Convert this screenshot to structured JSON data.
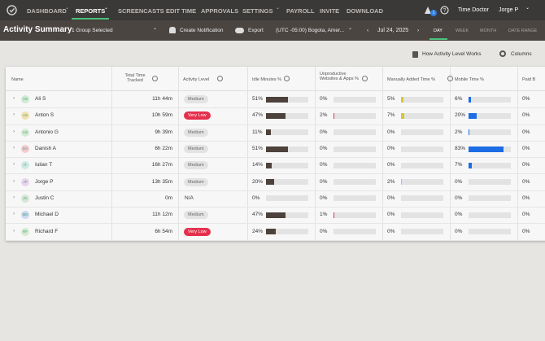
{
  "nav": {
    "items": [
      "DASHBOARD",
      "REPORTS",
      "SCREENCASTS",
      "EDIT TIME",
      "APPROVALS",
      "SETTINGS",
      "PAYROLL",
      "INVITE",
      "DOWNLOAD"
    ],
    "badge": "1",
    "brand": "Time Doctor",
    "user": "Jorge P"
  },
  "subbar": {
    "title": "Activity Summary",
    "group": "1 Group Selected",
    "notify": "Create Notification",
    "export": "Export",
    "timezone": "(UTC -05:00) Bogota, Amer...",
    "date": "Jul 24, 2025",
    "ranges": [
      "DAY",
      "WEEK",
      "MONTH",
      "DATE RANGE"
    ]
  },
  "toolbar": {
    "help": "How Activity Level Works",
    "columns": "Columns"
  },
  "table": {
    "headers": [
      "Name",
      "Total Time Tracked",
      "Activity Level",
      "Idle Minutes %",
      "Unproductive Websites & Apps %",
      "Manually Added Time %",
      "Mobile Time %",
      "Paid B"
    ],
    "rows": [
      {
        "initials": "AS",
        "name": "Ali S",
        "total": "11h 44m",
        "activity": "Medium",
        "idle": {
          "label": "51%",
          "value": 51
        },
        "unproductive": {
          "label": "0%",
          "value": 0
        },
        "manual": {
          "label": "5%",
          "value": 5
        },
        "mobile": {
          "label": "6%",
          "value": 6
        },
        "paid": "0%"
      },
      {
        "initials": "AS",
        "name": "Anton S",
        "total": "10h 59m",
        "activity": "Very Low",
        "idle": {
          "label": "47%",
          "value": 47
        },
        "unproductive": {
          "label": "2%",
          "value": 2
        },
        "manual": {
          "label": "7%",
          "value": 7
        },
        "mobile": {
          "label": "20%",
          "value": 20
        },
        "paid": "0%"
      },
      {
        "initials": "AG",
        "name": "Antonio G",
        "total": "9h 39m",
        "activity": "Medium",
        "idle": {
          "label": "11%",
          "value": 11
        },
        "unproductive": {
          "label": "0%",
          "value": 0
        },
        "manual": {
          "label": "0%",
          "value": 0
        },
        "mobile": {
          "label": "2%",
          "value": 2
        },
        "paid": "0%"
      },
      {
        "initials": "DA",
        "name": "Danish A",
        "total": "6h 22m",
        "activity": "Medium",
        "idle": {
          "label": "51%",
          "value": 51
        },
        "unproductive": {
          "label": "0%",
          "value": 0
        },
        "manual": {
          "label": "0%",
          "value": 0
        },
        "mobile": {
          "label": "83%",
          "value": 83
        },
        "paid": "0%"
      },
      {
        "initials": "IT",
        "name": "Iulian T",
        "total": "16h 27m",
        "activity": "Medium",
        "idle": {
          "label": "14%",
          "value": 14
        },
        "unproductive": {
          "label": "0%",
          "value": 0
        },
        "manual": {
          "label": "0%",
          "value": 0
        },
        "mobile": {
          "label": "7%",
          "value": 7
        },
        "paid": "0%"
      },
      {
        "initials": "JP",
        "name": "Jorge P",
        "total": "13h 35m",
        "activity": "Medium",
        "idle": {
          "label": "20%",
          "value": 20
        },
        "unproductive": {
          "label": "0%",
          "value": 0
        },
        "manual": {
          "label": "2%",
          "value": 2
        },
        "mobile": {
          "label": "0%",
          "value": 0
        },
        "paid": "0%"
      },
      {
        "initials": "JC",
        "name": "Justin C",
        "total": "0m",
        "activity": "N/A",
        "idle": {
          "label": "0%",
          "value": 0
        },
        "unproductive": {
          "label": "0%",
          "value": 0
        },
        "manual": {
          "label": "0%",
          "value": 0
        },
        "mobile": {
          "label": "0%",
          "value": 0
        },
        "paid": "0%"
      },
      {
        "initials": "MD",
        "name": "Michael D",
        "total": "11h 12m",
        "activity": "Medium",
        "idle": {
          "label": "47%",
          "value": 47
        },
        "unproductive": {
          "label": "1%",
          "value": 1
        },
        "manual": {
          "label": "0%",
          "value": 0
        },
        "mobile": {
          "label": "0%",
          "value": 0
        },
        "paid": "0%"
      },
      {
        "initials": "RF",
        "name": "Richard F",
        "total": "6h 54m",
        "activity": "Very Low",
        "idle": {
          "label": "24%",
          "value": 24
        },
        "unproductive": {
          "label": "0%",
          "value": 0
        },
        "manual": {
          "label": "0%",
          "value": 0
        },
        "mobile": {
          "label": "0%",
          "value": 0
        },
        "paid": "0%"
      }
    ]
  }
}
